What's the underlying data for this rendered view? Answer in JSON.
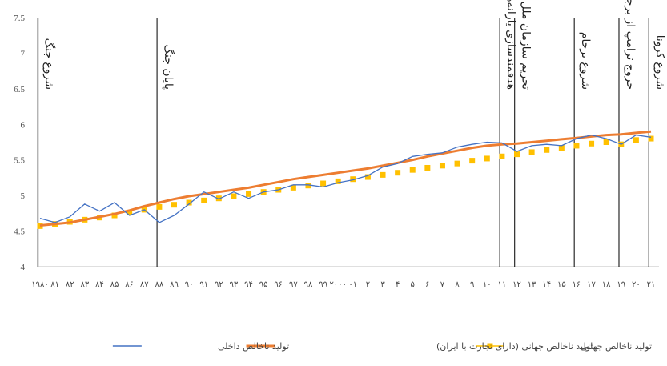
{
  "chart_data": {
    "type": "line",
    "title": "",
    "xlabel": "",
    "ylabel": "",
    "ylim": [
      4,
      7.5
    ],
    "yticks": [
      "4",
      "4.5",
      "5",
      "5.5",
      "6",
      "6.5",
      "7",
      "7.5"
    ],
    "grid": false,
    "legend_position": "bottom",
    "categories": [
      "۱۹۸۰",
      "۸۱",
      "۸۲",
      "۸۳",
      "۸۴",
      "۸۵",
      "۸۶",
      "۸۷",
      "۸۸",
      "۸۹",
      "۹۰",
      "۹۱",
      "۹۲",
      "۹۳",
      "۹۴",
      "۹۵",
      "۹۶",
      "۹۷",
      "۹۸",
      "۹۹",
      "۲۰۰۰",
      "۰۱",
      "۲",
      "۳",
      "۴",
      "۵",
      "۶",
      "۷",
      "۸",
      "۹",
      "۱۰",
      "۱۱",
      "۱۲",
      "۱۳",
      "۱۴",
      "۱۵",
      "۱۶",
      "۱۷",
      "۱۸",
      "۱۹",
      "۲۰",
      "۲۱"
    ],
    "series": [
      {
        "name": "تولید ناخالص داخلی",
        "color": "#4472C4",
        "style": "line",
        "values": [
          4.68,
          4.62,
          4.7,
          4.88,
          4.78,
          4.9,
          4.72,
          4.8,
          4.62,
          4.72,
          4.88,
          5.05,
          4.95,
          5.05,
          4.96,
          5.05,
          5.08,
          5.15,
          5.15,
          5.12,
          5.18,
          5.22,
          5.28,
          5.4,
          5.45,
          5.55,
          5.58,
          5.6,
          5.68,
          5.72,
          5.75,
          5.74,
          5.62,
          5.7,
          5.72,
          5.7,
          5.8,
          5.85,
          5.8,
          5.72,
          5.85,
          5.82
        ]
      },
      {
        "name": "تولید ناخالص جهانی (دارای تجارت با ایران)",
        "color": "#ED7D31",
        "style": "line",
        "values": [
          4.58,
          4.6,
          4.62,
          4.66,
          4.7,
          4.74,
          4.79,
          4.85,
          4.9,
          4.95,
          4.99,
          5.02,
          5.05,
          5.08,
          5.11,
          5.15,
          5.19,
          5.23,
          5.26,
          5.29,
          5.32,
          5.35,
          5.38,
          5.42,
          5.46,
          5.5,
          5.55,
          5.59,
          5.63,
          5.67,
          5.7,
          5.72,
          5.73,
          5.75,
          5.77,
          5.79,
          5.81,
          5.83,
          5.85,
          5.86,
          5.88,
          5.9
        ]
      },
      {
        "name": "تولید ناخالص جهانی",
        "color": "#FFC000",
        "style": "markers",
        "values": [
          4.57,
          4.6,
          4.63,
          4.66,
          4.69,
          4.72,
          4.76,
          4.8,
          4.84,
          4.87,
          4.9,
          4.93,
          4.96,
          4.99,
          5.02,
          5.05,
          5.08,
          5.11,
          5.14,
          5.17,
          5.2,
          5.23,
          5.26,
          5.29,
          5.32,
          5.36,
          5.39,
          5.42,
          5.45,
          5.49,
          5.52,
          5.55,
          5.58,
          5.61,
          5.64,
          5.67,
          5.7,
          5.73,
          5.75,
          5.72,
          5.78,
          5.8
        ]
      }
    ],
    "annotations": [
      {
        "label": "شروع جنگ",
        "category_index": 0
      },
      {
        "label": "پایان جنگ",
        "category_index": 8
      },
      {
        "label": "هدفمندسازی یارانه‌ها",
        "category_index": 31
      },
      {
        "label": "تحریم سازمان ملل",
        "category_index": 32
      },
      {
        "label": "شروع برجام",
        "category_index": 36
      },
      {
        "label": "خروج ترامپ از برجام",
        "category_index": 39
      },
      {
        "label": "شروع کرونا",
        "category_index": 41
      }
    ]
  }
}
